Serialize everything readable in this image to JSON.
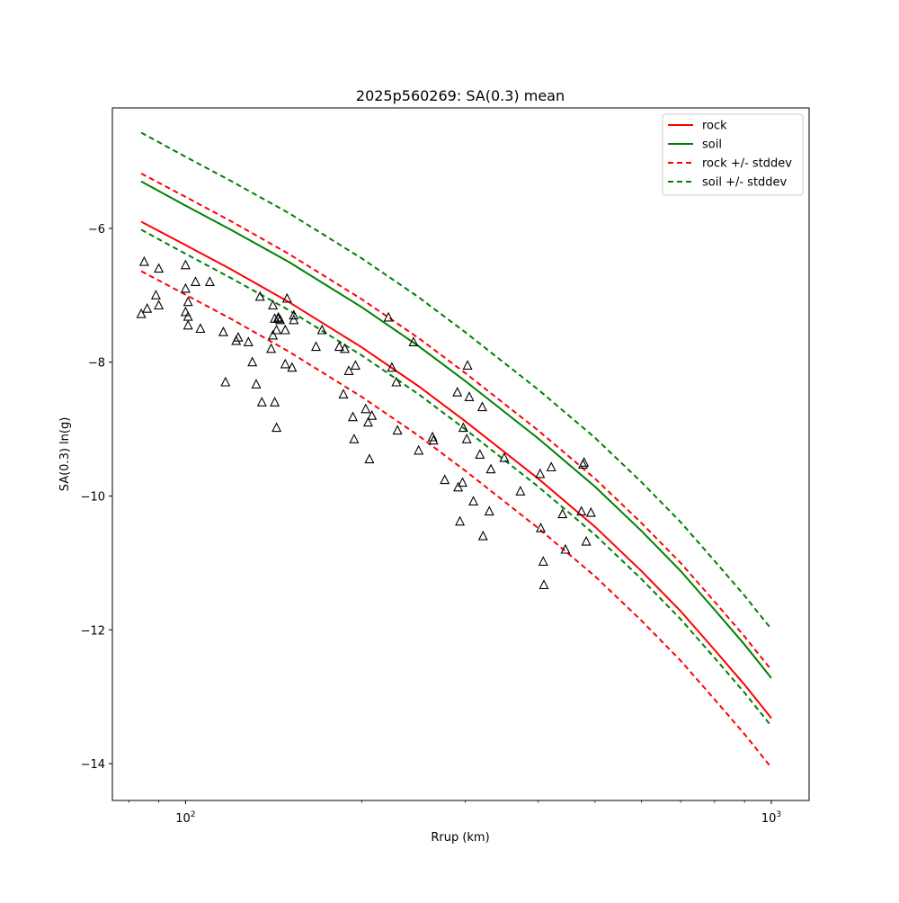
{
  "chart_data": {
    "type": "scatter",
    "title": "2025p560269: SA(0.3) mean",
    "xlabel": "Rrup (km)",
    "ylabel": "SA(0.3) ln(g)",
    "xscale": "log",
    "xlim": [
      75,
      1160
    ],
    "ylim": [
      -14.55,
      -4.2
    ],
    "yticks": [
      -6,
      -8,
      -10,
      -12,
      -14
    ],
    "ytick_labels": [
      "−6",
      "−8",
      "−10",
      "−12",
      "−14"
    ],
    "xticks": [
      100,
      1000
    ],
    "xtick_labels": [
      {
        "base": "10",
        "exp": "2"
      },
      {
        "base": "10",
        "exp": "3"
      }
    ],
    "x_minor_ticks": [
      80,
      90,
      200,
      300,
      400,
      500,
      600,
      700,
      800,
      900
    ],
    "grid": false,
    "legend_position": "top-right",
    "legend": [
      {
        "label": "rock",
        "color": "#ff0000",
        "dash": false
      },
      {
        "label": "soil",
        "color": "#008000",
        "dash": false
      },
      {
        "label": "rock +/- stddev",
        "color": "#ff0000",
        "dash": true
      },
      {
        "label": "soil +/- stddev",
        "color": "#008000",
        "dash": true
      }
    ],
    "curve_x": [
      84,
      100,
      120,
      150,
      200,
      250,
      300,
      400,
      500,
      600,
      700,
      800,
      900,
      1000
    ],
    "series": [
      {
        "name": "rock",
        "color": "#ff0000",
        "dash": false,
        "y": [
          -5.9,
          -6.25,
          -6.62,
          -7.1,
          -7.78,
          -8.36,
          -8.88,
          -9.74,
          -10.46,
          -11.12,
          -11.72,
          -12.3,
          -12.82,
          -13.32
        ]
      },
      {
        "name": "soil",
        "color": "#008000",
        "dash": false,
        "y": [
          -5.3,
          -5.66,
          -6.03,
          -6.5,
          -7.18,
          -7.76,
          -8.28,
          -9.14,
          -9.86,
          -10.52,
          -11.12,
          -11.7,
          -12.22,
          -12.72
        ]
      },
      {
        "color": "#ff0000",
        "dash": true,
        "y": [
          -5.18,
          -5.53,
          -5.9,
          -6.38,
          -7.06,
          -7.64,
          -8.16,
          -9.02,
          -9.74,
          -10.4,
          -11.0,
          -11.58,
          -12.1,
          -12.6
        ]
      },
      {
        "color": "#ff0000",
        "dash": true,
        "y": [
          -6.64,
          -6.99,
          -7.36,
          -7.84,
          -8.52,
          -9.1,
          -9.62,
          -10.48,
          -11.2,
          -11.86,
          -12.46,
          -13.04,
          -13.56,
          -14.06
        ]
      },
      {
        "color": "#008000",
        "dash": true,
        "y": [
          -4.57,
          -4.93,
          -5.3,
          -5.77,
          -6.45,
          -7.03,
          -7.55,
          -8.41,
          -9.13,
          -9.79,
          -10.39,
          -10.97,
          -11.49,
          -11.99
        ]
      },
      {
        "color": "#008000",
        "dash": true,
        "y": [
          -6.02,
          -6.38,
          -6.75,
          -7.22,
          -7.9,
          -8.48,
          -9.0,
          -9.86,
          -10.58,
          -11.24,
          -11.84,
          -12.42,
          -12.94,
          -13.44
        ]
      }
    ],
    "observations": {
      "marker": "triangle-open",
      "color": "#000000",
      "x": [
        84,
        85,
        86,
        89,
        90,
        90,
        100,
        100,
        100,
        101,
        101,
        101,
        104,
        106,
        110,
        116,
        117,
        122,
        123,
        128,
        130,
        132,
        134,
        135,
        140,
        141,
        141,
        142,
        142,
        143,
        143,
        144,
        144,
        145,
        148,
        148,
        149,
        152,
        153,
        153,
        167,
        171,
        183,
        186,
        187,
        190,
        193,
        194,
        195,
        203,
        205,
        206,
        208,
        222,
        225,
        229,
        230,
        245,
        250,
        264,
        265,
        277,
        291,
        292,
        294,
        297,
        298,
        302,
        303,
        305,
        310,
        318,
        321,
        322,
        330,
        332,
        350,
        373,
        403,
        404,
        408,
        409,
        421,
        440,
        445,
        474,
        477,
        479,
        483,
        492
      ],
      "y": [
        -7.28,
        -6.5,
        -7.2,
        -7.0,
        -7.15,
        -6.6,
        -6.55,
        -6.9,
        -7.25,
        -7.32,
        -7.1,
        -7.45,
        -6.8,
        -7.5,
        -6.8,
        -7.55,
        -8.3,
        -7.68,
        -7.63,
        -7.7,
        -8.0,
        -8.33,
        -7.02,
        -8.6,
        -7.8,
        -7.15,
        -7.6,
        -7.35,
        -8.6,
        -8.98,
        -7.52,
        -7.33,
        -7.35,
        -7.37,
        -7.52,
        -8.03,
        -7.05,
        -8.08,
        -7.3,
        -7.37,
        -7.77,
        -7.52,
        -7.77,
        -8.48,
        -7.8,
        -8.13,
        -8.82,
        -9.15,
        -8.05,
        -8.7,
        -8.9,
        -9.45,
        -8.8,
        -7.33,
        -8.08,
        -8.3,
        -9.02,
        -7.7,
        -9.32,
        -9.12,
        -9.17,
        -9.76,
        -8.45,
        -9.87,
        -10.38,
        -9.8,
        -8.98,
        -9.15,
        -8.05,
        -8.52,
        -10.08,
        -9.38,
        -8.67,
        -10.6,
        -10.23,
        -9.6,
        -9.43,
        -9.93,
        -9.67,
        -10.48,
        -10.98,
        -11.33,
        -9.57,
        -10.27,
        -10.8,
        -10.23,
        -9.53,
        -9.5,
        -10.68,
        -10.25
      ]
    }
  }
}
